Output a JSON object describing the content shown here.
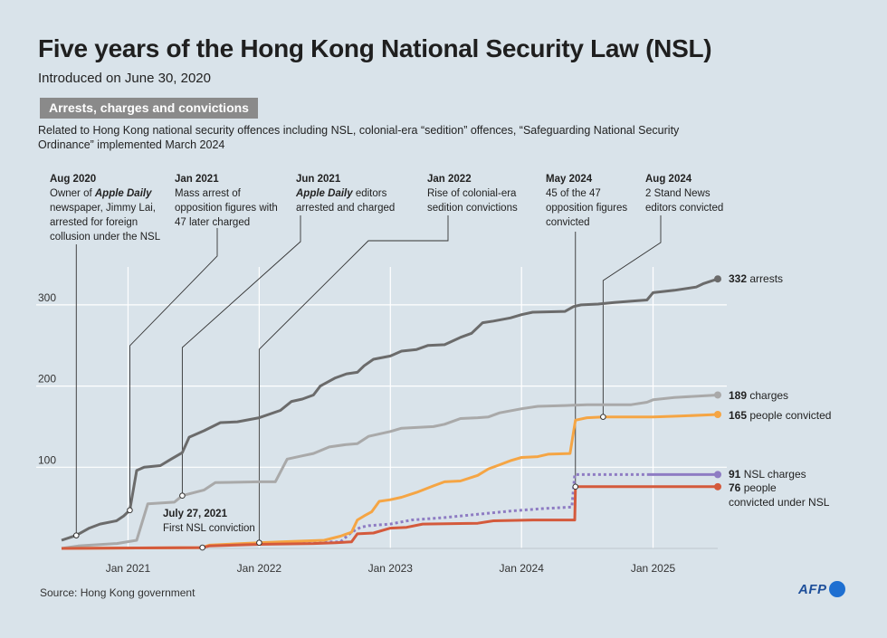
{
  "header": {
    "title": "Five years of the Hong Kong National Security Law (NSL)",
    "subtitle": "Introduced on June 30, 2020",
    "section_tag": "Arrests, charges and convictions",
    "description": "Related to Hong Kong national security offences including NSL,  colonial-era “sedition” offences, “Safeguarding National Security Ordinance” implemented March 2024"
  },
  "footer": {
    "source": "Source: Hong Kong government",
    "logo": "AFP"
  },
  "colors": {
    "arrests": "#6b6b6b",
    "charges": "#a9a9a9",
    "people_convicted": "#f5a544",
    "nsl_charges": "#8e7cc3",
    "nsl_convicted": "#d45a3c",
    "grid": "#ffffff"
  },
  "chart_data": {
    "type": "line",
    "x_axis": {
      "min": "2020-06-30",
      "max": "2025-06-30",
      "ticks": [
        "2021-01-01",
        "2022-01-01",
        "2023-01-01",
        "2024-01-01",
        "2025-01-01"
      ],
      "tick_labels": [
        "Jan 2021",
        "Jan 2022",
        "Jan 2023",
        "Jan 2024",
        "Jan 2025"
      ]
    },
    "y_axis": {
      "min": 0,
      "max": 330,
      "ticks": [
        100,
        200,
        300
      ]
    },
    "grid": true,
    "series": [
      {
        "key": "arrests",
        "end_value": "332",
        "end_label": "arrests",
        "style": "solid",
        "points": [
          [
            "2020-06-30",
            10
          ],
          [
            "2020-08-10",
            16
          ],
          [
            "2020-09-15",
            25
          ],
          [
            "2020-10-15",
            30
          ],
          [
            "2020-11-30",
            34
          ],
          [
            "2020-12-20",
            40
          ],
          [
            "2021-01-06",
            47
          ],
          [
            "2021-01-25",
            96
          ],
          [
            "2021-02-15",
            100
          ],
          [
            "2021-04-01",
            102
          ],
          [
            "2021-05-01",
            110
          ],
          [
            "2021-06-01",
            118
          ],
          [
            "2021-06-20",
            137
          ],
          [
            "2021-08-01",
            145
          ],
          [
            "2021-09-15",
            155
          ],
          [
            "2021-11-01",
            156
          ],
          [
            "2022-01-01",
            161
          ],
          [
            "2022-03-01",
            170
          ],
          [
            "2022-04-01",
            181
          ],
          [
            "2022-05-01",
            184
          ],
          [
            "2022-06-01",
            189
          ],
          [
            "2022-06-20",
            200
          ],
          [
            "2022-08-01",
            210
          ],
          [
            "2022-09-01",
            215
          ],
          [
            "2022-10-01",
            217
          ],
          [
            "2022-10-20",
            225
          ],
          [
            "2022-11-15",
            233
          ],
          [
            "2023-01-01",
            237
          ],
          [
            "2023-02-01",
            243
          ],
          [
            "2023-03-15",
            245
          ],
          [
            "2023-04-15",
            250
          ],
          [
            "2023-06-01",
            251
          ],
          [
            "2023-07-15",
            260
          ],
          [
            "2023-08-15",
            265
          ],
          [
            "2023-09-15",
            278
          ],
          [
            "2023-10-15",
            280
          ],
          [
            "2023-12-01",
            284
          ],
          [
            "2024-01-01",
            288
          ],
          [
            "2024-02-01",
            291
          ],
          [
            "2024-05-01",
            292
          ],
          [
            "2024-05-25",
            298
          ],
          [
            "2024-06-15",
            300
          ],
          [
            "2024-08-01",
            301
          ],
          [
            "2024-09-15",
            303
          ],
          [
            "2024-11-15",
            305
          ],
          [
            "2024-12-15",
            306
          ],
          [
            "2025-01-01",
            315
          ],
          [
            "2025-03-01",
            318
          ],
          [
            "2025-05-01",
            322
          ],
          [
            "2025-05-20",
            326
          ],
          [
            "2025-06-30",
            332
          ]
        ]
      },
      {
        "key": "charges",
        "end_value": "189",
        "end_label": "charges",
        "style": "solid",
        "points": [
          [
            "2020-06-30",
            0
          ],
          [
            "2020-08-15",
            3
          ],
          [
            "2020-12-01",
            6
          ],
          [
            "2021-01-25",
            10
          ],
          [
            "2021-02-25",
            55
          ],
          [
            "2021-05-10",
            57
          ],
          [
            "2021-06-01",
            65
          ],
          [
            "2021-08-01",
            72
          ],
          [
            "2021-09-01",
            81
          ],
          [
            "2022-01-01",
            82
          ],
          [
            "2022-02-15",
            82
          ],
          [
            "2022-03-20",
            110
          ],
          [
            "2022-05-01",
            114
          ],
          [
            "2022-06-01",
            117
          ],
          [
            "2022-07-15",
            125
          ],
          [
            "2022-09-01",
            128
          ],
          [
            "2022-10-01",
            129
          ],
          [
            "2022-11-01",
            138
          ],
          [
            "2023-01-01",
            144
          ],
          [
            "2023-02-01",
            148
          ],
          [
            "2023-05-01",
            150
          ],
          [
            "2023-06-01",
            153
          ],
          [
            "2023-07-15",
            160
          ],
          [
            "2023-09-01",
            161
          ],
          [
            "2023-10-01",
            162
          ],
          [
            "2023-11-01",
            167
          ],
          [
            "2024-01-01",
            172
          ],
          [
            "2024-02-15",
            175
          ],
          [
            "2024-05-01",
            176
          ],
          [
            "2024-07-01",
            177
          ],
          [
            "2024-11-01",
            177
          ],
          [
            "2024-12-15",
            180
          ],
          [
            "2025-01-01",
            183
          ],
          [
            "2025-03-01",
            186
          ],
          [
            "2025-06-30",
            189
          ]
        ]
      },
      {
        "key": "people_convicted",
        "end_value": "165",
        "end_label": "people convicted",
        "style": "solid",
        "points": [
          [
            "2020-06-30",
            0
          ],
          [
            "2021-07-27",
            1
          ],
          [
            "2021-08-15",
            4
          ],
          [
            "2021-10-01",
            5
          ],
          [
            "2022-01-01",
            7
          ],
          [
            "2022-03-01",
            8
          ],
          [
            "2022-07-01",
            10
          ],
          [
            "2022-08-15",
            15
          ],
          [
            "2022-09-15",
            20
          ],
          [
            "2022-10-01",
            35
          ],
          [
            "2022-10-20",
            40
          ],
          [
            "2022-11-10",
            45
          ],
          [
            "2022-12-01",
            58
          ],
          [
            "2023-01-01",
            60
          ],
          [
            "2023-02-01",
            63
          ],
          [
            "2023-03-15",
            69
          ],
          [
            "2023-05-01",
            77
          ],
          [
            "2023-06-01",
            82
          ],
          [
            "2023-07-15",
            83
          ],
          [
            "2023-09-01",
            90
          ],
          [
            "2023-10-01",
            98
          ],
          [
            "2023-11-01",
            103
          ],
          [
            "2023-12-01",
            108
          ],
          [
            "2024-01-01",
            112
          ],
          [
            "2024-02-15",
            113
          ],
          [
            "2024-03-15",
            116
          ],
          [
            "2024-05-15",
            117
          ],
          [
            "2024-05-30",
            158
          ],
          [
            "2024-07-01",
            161
          ],
          [
            "2024-08-15",
            162
          ],
          [
            "2025-01-01",
            162
          ],
          [
            "2025-03-15",
            163
          ],
          [
            "2025-06-30",
            165
          ]
        ]
      },
      {
        "key": "nsl_charges",
        "end_value": "91",
        "end_label": "NSL charges",
        "style": "dotted-then-solid",
        "solid_from": "2024-12-15",
        "points": [
          [
            "2022-01-01",
            7
          ],
          [
            "2022-08-15",
            8
          ],
          [
            "2022-09-15",
            20
          ],
          [
            "2022-10-10",
            26
          ],
          [
            "2022-11-01",
            28
          ],
          [
            "2023-01-01",
            30
          ],
          [
            "2023-03-01",
            35
          ],
          [
            "2023-06-01",
            38
          ],
          [
            "2023-09-01",
            42
          ],
          [
            "2023-12-01",
            46
          ],
          [
            "2024-01-01",
            47
          ],
          [
            "2024-03-01",
            49
          ],
          [
            "2024-05-20",
            51
          ],
          [
            "2024-05-28",
            91
          ],
          [
            "2024-12-15",
            91
          ],
          [
            "2025-06-30",
            91
          ]
        ]
      },
      {
        "key": "nsl_convicted",
        "end_value": "76",
        "end_label": "people",
        "end_label_2": "convicted under NSL",
        "style": "solid",
        "points": [
          [
            "2020-06-30",
            0
          ],
          [
            "2021-07-27",
            1
          ],
          [
            "2021-08-15",
            3
          ],
          [
            "2022-01-01",
            5
          ],
          [
            "2022-06-01",
            6
          ],
          [
            "2022-08-01",
            7
          ],
          [
            "2022-09-15",
            8
          ],
          [
            "2022-10-01",
            18
          ],
          [
            "2022-11-15",
            19
          ],
          [
            "2023-01-01",
            25
          ],
          [
            "2023-02-15",
            26
          ],
          [
            "2023-04-01",
            30
          ],
          [
            "2023-09-01",
            31
          ],
          [
            "2023-10-15",
            34
          ],
          [
            "2024-02-01",
            35
          ],
          [
            "2024-05-28",
            35
          ],
          [
            "2024-05-30",
            76
          ],
          [
            "2025-06-30",
            76
          ]
        ]
      }
    ],
    "annotations": [
      {
        "date_label": "Aug 2020",
        "lines": [
          "Owner of ",
          "Apple Daily",
          " newspaper, Jimmy Lai,",
          "arrested for foreign",
          "collusion under the NSL"
        ],
        "target_date": "2020-08-10",
        "target_value": 16
      },
      {
        "date_label": "Jan 2021",
        "lines": [
          "Mass arrest of",
          "opposition figures with",
          "47 later charged"
        ],
        "target_date": "2021-01-06",
        "target_value": 47
      },
      {
        "date_label": "Jun 2021",
        "lines": [
          "Apple Daily",
          " editors",
          "arrested and charged"
        ],
        "target_date": "2021-06-01",
        "target_value": 65
      },
      {
        "date_label": "Jan 2022",
        "lines": [
          "Rise of colonial-era",
          "sedition convictions"
        ],
        "target_date": "2022-01-01",
        "target_value": 7
      },
      {
        "date_label": "May 2024",
        "lines": [
          "45 of the 47",
          "opposition figures",
          "convicted"
        ],
        "target_date": "2024-05-30",
        "target_value": 76
      },
      {
        "date_label": "Aug 2024",
        "lines": [
          "2 Stand News",
          "editors convicted"
        ],
        "target_date": "2024-08-15",
        "target_value": 162
      },
      {
        "date_label": "July 27, 2021",
        "lines": [
          "First NSL conviction"
        ],
        "target_date": "2021-07-27",
        "target_value": 1
      }
    ]
  }
}
